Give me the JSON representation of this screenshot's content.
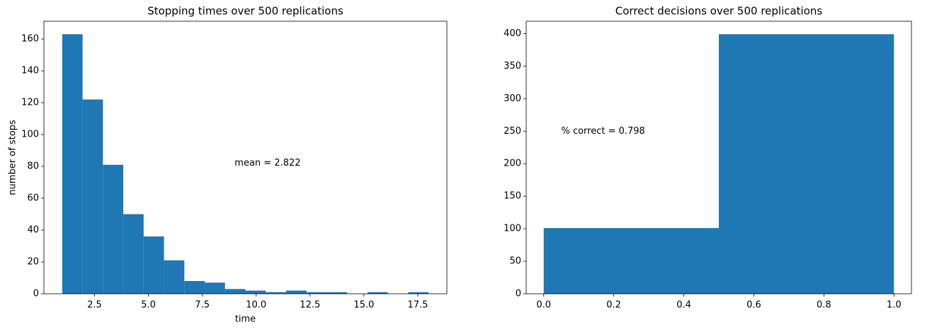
{
  "chart_data": [
    {
      "type": "histogram",
      "title": "Stopping times over 500 replications",
      "xlabel": "time",
      "ylabel": "number of stops",
      "bins": [
        1,
        1.9444,
        2.8889,
        3.8333,
        4.7778,
        5.7222,
        6.6667,
        7.6111,
        8.5556,
        9.5,
        10.4444,
        11.3889,
        12.3333,
        13.2778,
        14.2222,
        15.1667,
        16.1111,
        17.0556,
        18
      ],
      "values": [
        163,
        122,
        81,
        50,
        36,
        21,
        8,
        7,
        3,
        2,
        1,
        2,
        1,
        1,
        0,
        1,
        0,
        1
      ],
      "color": "#1f77b4",
      "xlim": [
        0.15,
        18.85
      ],
      "ylim": [
        0,
        171.15
      ],
      "xticks": [
        2.5,
        {
          "value": 5,
          "label": "5.0"
        },
        7.5,
        {
          "value": 10,
          "label": "10.0"
        },
        12.5,
        {
          "value": 15,
          "label": "15.0"
        },
        17.5
      ],
      "yticks": [
        0,
        20,
        40,
        60,
        80,
        100,
        120,
        140,
        160
      ],
      "annotations": [
        {
          "text": "mean = 2.822",
          "x": 9,
          "y": 82
        }
      ]
    },
    {
      "type": "histogram",
      "title": "Correct decisions over 500 replications",
      "bins": [
        0,
        0.5,
        1
      ],
      "values": [
        101,
        399
      ],
      "color": "#1f77b4",
      "xlim": [
        -0.05,
        1.05
      ],
      "ylim": [
        0,
        418.95
      ],
      "xticks": [
        {
          "value": 0,
          "label": "0.0"
        },
        0.2,
        0.4,
        0.6,
        0.8,
        {
          "value": 1,
          "label": "1.0"
        }
      ],
      "yticks": [
        0,
        50,
        100,
        150,
        200,
        250,
        300,
        350,
        400
      ],
      "annotations": [
        {
          "text": "% correct = 0.798",
          "x": 0.05,
          "y": 250
        }
      ]
    }
  ]
}
